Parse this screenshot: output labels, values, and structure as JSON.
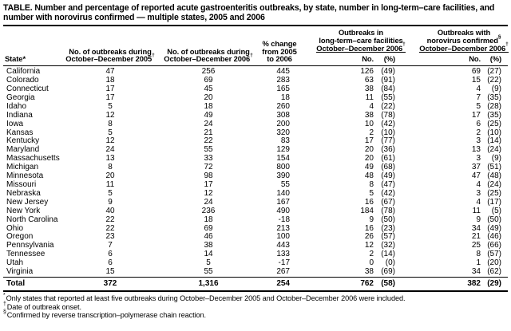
{
  "title": {
    "line1": "TABLE. Number and percentage of reported acute gastroenteritis outbreaks, by state, number in long-term–care facilities, and",
    "line2": "number with norovirus confirmed — multiple states, 2005 and 2006"
  },
  "columns": {
    "state": {
      "label": "State",
      "sup": "*"
    },
    "n2005": {
      "l1": "No. of outbreaks during",
      "l2": "October–December 2005",
      "sup": "†"
    },
    "n2006": {
      "l1": "No. of outbreaks during",
      "l2": "October–December 2006",
      "sup": "†"
    },
    "change": {
      "l1": "% change",
      "l2": "from 2005",
      "l3": "to 2006"
    },
    "ltc": {
      "l1": "Outbreaks in",
      "l2": "long-term–care facilities",
      "l3": "October–December 2006",
      "sup": "†"
    },
    "noro": {
      "l1": "Outbreaks with",
      "l2": "norovirus confirmed",
      "l2sup": "§",
      "l3": "October–December 2006",
      "sup": "†"
    },
    "no_label": "No.",
    "pct_label": "(%)"
  },
  "rows": [
    {
      "state": "California",
      "n2005": "47",
      "n2006": "256",
      "change": "445",
      "ltc_no": "126",
      "ltc_pct": "(49)",
      "noro_no": "69",
      "noro_pct": "(27)"
    },
    {
      "state": "Colorado",
      "n2005": "18",
      "n2006": "69",
      "change": "283",
      "ltc_no": "63",
      "ltc_pct": "(91)",
      "noro_no": "15",
      "noro_pct": "(22)"
    },
    {
      "state": "Connecticut",
      "n2005": "17",
      "n2006": "45",
      "change": "165",
      "ltc_no": "38",
      "ltc_pct": "(84)",
      "noro_no": "4",
      "noro_pct": "(9)"
    },
    {
      "state": "Georgia",
      "n2005": "17",
      "n2006": "20",
      "change": "18",
      "ltc_no": "11",
      "ltc_pct": "(55)",
      "noro_no": "7",
      "noro_pct": "(35)"
    },
    {
      "state": "Idaho",
      "n2005": "5",
      "n2006": "18",
      "change": "260",
      "ltc_no": "4",
      "ltc_pct": "(22)",
      "noro_no": "5",
      "noro_pct": "(28)"
    },
    {
      "state": "Indiana",
      "n2005": "12",
      "n2006": "49",
      "change": "308",
      "ltc_no": "38",
      "ltc_pct": "(78)",
      "noro_no": "17",
      "noro_pct": "(35)"
    },
    {
      "state": "Iowa",
      "n2005": "8",
      "n2006": "24",
      "change": "200",
      "ltc_no": "10",
      "ltc_pct": "(42)",
      "noro_no": "6",
      "noro_pct": "(25)"
    },
    {
      "state": "Kansas",
      "n2005": "5",
      "n2006": "21",
      "change": "320",
      "ltc_no": "2",
      "ltc_pct": "(10)",
      "noro_no": "2",
      "noro_pct": "(10)"
    },
    {
      "state": "Kentucky",
      "n2005": "12",
      "n2006": "22",
      "change": "83",
      "ltc_no": "17",
      "ltc_pct": "(77)",
      "noro_no": "3",
      "noro_pct": "(14)"
    },
    {
      "state": "Maryland",
      "n2005": "24",
      "n2006": "55",
      "change": "129",
      "ltc_no": "20",
      "ltc_pct": "(36)",
      "noro_no": "13",
      "noro_pct": "(24)"
    },
    {
      "state": "Massachusetts",
      "n2005": "13",
      "n2006": "33",
      "change": "154",
      "ltc_no": "20",
      "ltc_pct": "(61)",
      "noro_no": "3",
      "noro_pct": "(9)"
    },
    {
      "state": "Michigan",
      "n2005": "8",
      "n2006": "72",
      "change": "800",
      "ltc_no": "49",
      "ltc_pct": "(68)",
      "noro_no": "37",
      "noro_pct": "(51)"
    },
    {
      "state": "Minnesota",
      "n2005": "20",
      "n2006": "98",
      "change": "390",
      "ltc_no": "48",
      "ltc_pct": "(49)",
      "noro_no": "47",
      "noro_pct": "(48)"
    },
    {
      "state": "Missouri",
      "n2005": "11",
      "n2006": "17",
      "change": "55",
      "ltc_no": "8",
      "ltc_pct": "(47)",
      "noro_no": "4",
      "noro_pct": "(24)"
    },
    {
      "state": "Nebraska",
      "n2005": "5",
      "n2006": "12",
      "change": "140",
      "ltc_no": "5",
      "ltc_pct": "(42)",
      "noro_no": "3",
      "noro_pct": "(25)"
    },
    {
      "state": "New Jersey",
      "n2005": "9",
      "n2006": "24",
      "change": "167",
      "ltc_no": "16",
      "ltc_pct": "(67)",
      "noro_no": "4",
      "noro_pct": "(17)"
    },
    {
      "state": "New York",
      "n2005": "40",
      "n2006": "236",
      "change": "490",
      "ltc_no": "184",
      "ltc_pct": "(78)",
      "noro_no": "11",
      "noro_pct": "(5)"
    },
    {
      "state": "North Carolina",
      "n2005": "22",
      "n2006": "18",
      "change": "-18",
      "ltc_no": "9",
      "ltc_pct": "(50)",
      "noro_no": "9",
      "noro_pct": "(50)"
    },
    {
      "state": "Ohio",
      "n2005": "22",
      "n2006": "69",
      "change": "213",
      "ltc_no": "16",
      "ltc_pct": "(23)",
      "noro_no": "34",
      "noro_pct": "(49)"
    },
    {
      "state": "Oregon",
      "n2005": "23",
      "n2006": "46",
      "change": "100",
      "ltc_no": "26",
      "ltc_pct": "(57)",
      "noro_no": "21",
      "noro_pct": "(46)"
    },
    {
      "state": "Pennsylvania",
      "n2005": "7",
      "n2006": "38",
      "change": "443",
      "ltc_no": "12",
      "ltc_pct": "(32)",
      "noro_no": "25",
      "noro_pct": "(66)"
    },
    {
      "state": "Tennessee",
      "n2005": "6",
      "n2006": "14",
      "change": "133",
      "ltc_no": "2",
      "ltc_pct": "(14)",
      "noro_no": "8",
      "noro_pct": "(57)"
    },
    {
      "state": "Utah",
      "n2005": "6",
      "n2006": "5",
      "change": "-17",
      "ltc_no": "0",
      "ltc_pct": "(0)",
      "noro_no": "1",
      "noro_pct": "(20)"
    },
    {
      "state": "Virginia",
      "n2005": "15",
      "n2006": "55",
      "change": "267",
      "ltc_no": "38",
      "ltc_pct": "(69)",
      "noro_no": "34",
      "noro_pct": "(62)"
    }
  ],
  "total": {
    "label": "Total",
    "n2005": "372",
    "n2006": "1,316",
    "change": "254",
    "ltc_no": "762",
    "ltc_pct": "(58)",
    "noro_no": "382",
    "noro_pct": "(29)"
  },
  "footnotes": [
    {
      "marker": "*",
      "text": "Only states that reported at least five outbreaks during October–December 2005 and October–December 2006 were included."
    },
    {
      "marker": "†",
      "text": "Date of outbreak onset."
    },
    {
      "marker": "§",
      "text": "Confirmed by reverse transcription–polymerase chain reaction."
    }
  ]
}
